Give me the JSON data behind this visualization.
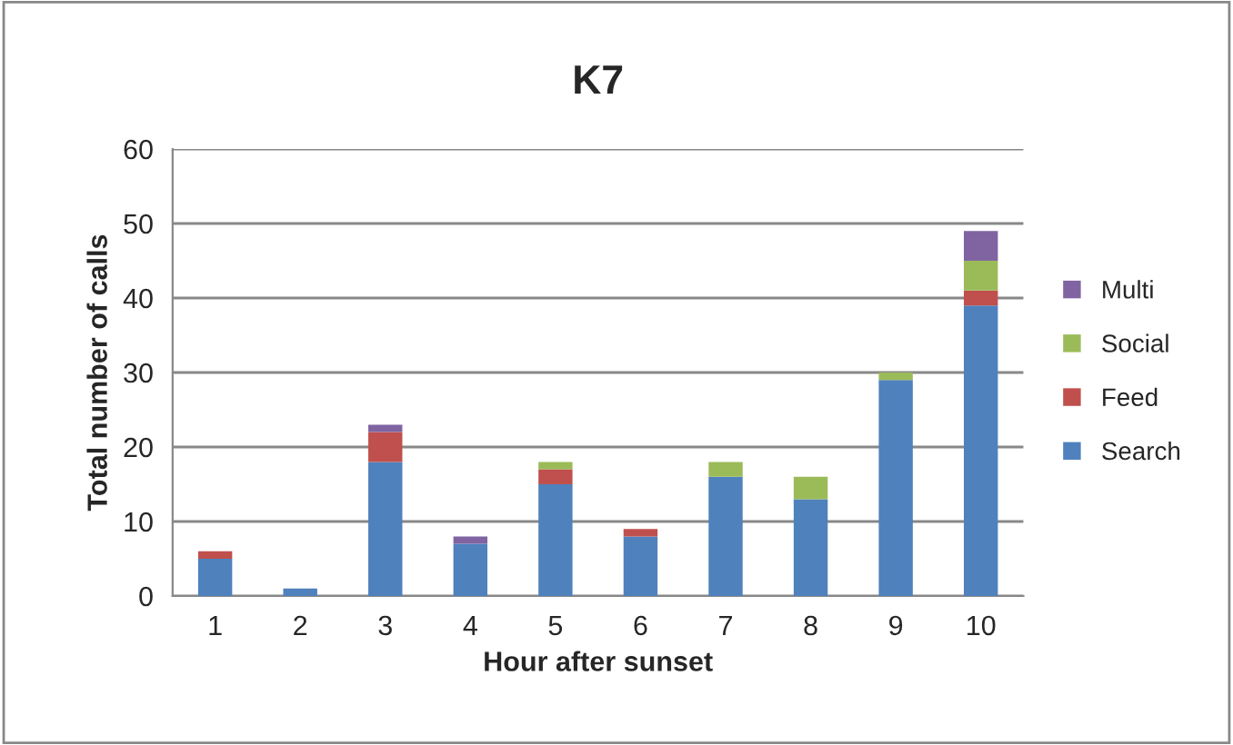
{
  "chart_data": {
    "type": "bar",
    "title": "K7",
    "xlabel": "Hour after sunset",
    "ylabel": "Total number of calls",
    "categories": [
      "1",
      "2",
      "3",
      "4",
      "5",
      "6",
      "7",
      "8",
      "9",
      "10"
    ],
    "stacked": true,
    "series": [
      {
        "name": "Search",
        "color": "#4f81bd",
        "values": [
          5,
          1,
          18,
          7,
          15,
          8,
          16,
          13,
          29,
          39
        ]
      },
      {
        "name": "Feed",
        "color": "#c0504d",
        "values": [
          1,
          0,
          4,
          0,
          2,
          1,
          0,
          0,
          0,
          2
        ]
      },
      {
        "name": "Social",
        "color": "#9bbb59",
        "values": [
          0,
          0,
          0,
          0,
          1,
          0,
          2,
          3,
          1,
          4
        ]
      },
      {
        "name": "Multi",
        "color": "#8064a2",
        "values": [
          0,
          0,
          1,
          1,
          0,
          0,
          0,
          0,
          0,
          4
        ]
      }
    ],
    "ylim": [
      0,
      60
    ],
    "yticks": [
      0,
      10,
      20,
      30,
      40,
      50,
      60
    ],
    "grid": "y",
    "legend": "right"
  }
}
